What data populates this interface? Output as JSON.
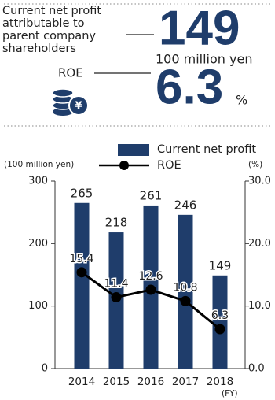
{
  "header": {
    "profit_label": [
      "Current net profit",
      "attributable to",
      "parent company",
      "shareholders"
    ],
    "profit_value": 149,
    "profit_unit": "100 million yen",
    "roe_label": "ROE",
    "roe_value": 6.3,
    "roe_unit": "%",
    "icon_symbol": "¥"
  },
  "chart_data": {
    "type": "bar_line",
    "categories": [
      "2014",
      "2015",
      "2016",
      "2017",
      "2018"
    ],
    "x_label": "(FY)",
    "y_label": "(100 million yen)",
    "y2_label": "(%)",
    "series": [
      {
        "name": "Current net profit",
        "type": "bar",
        "color": "#1f3d6b",
        "values": [
          265,
          218,
          261,
          246,
          149
        ]
      },
      {
        "name": "ROE",
        "type": "line",
        "axis": "y2",
        "color": "#000000",
        "values": [
          15.4,
          11.4,
          12.6,
          10.8,
          6.3
        ]
      }
    ],
    "ylim": [
      0,
      300
    ],
    "yticks": [
      0,
      100,
      200,
      300
    ],
    "y2lim": [
      0,
      30
    ],
    "y2ticks": [
      {
        "value": 0,
        "label": "0.0"
      },
      {
        "value": 10,
        "label": "10.0"
      },
      {
        "value": 20,
        "label": "20.0"
      },
      {
        "value": 30,
        "label": "30.0"
      }
    ],
    "grid": false
  }
}
